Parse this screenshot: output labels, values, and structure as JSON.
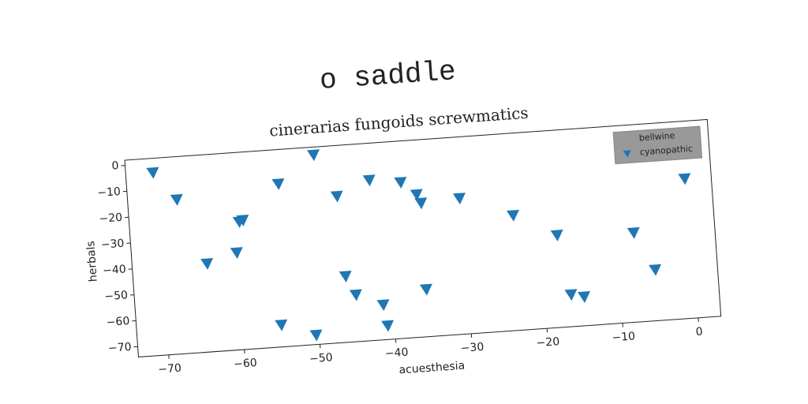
{
  "chart_data": {
    "type": "scatter",
    "suptitle": "o saddle",
    "title": "cinerarias fungoids screwmatics",
    "xlabel": "acuesthesia",
    "ylabel": "herbals",
    "legend_title": "bellwine",
    "legend": "upper right",
    "marker": "v",
    "xlim": [
      -74,
      3
    ],
    "ylim": [
      -74,
      2
    ],
    "xticks": [
      {
        "value": -70,
        "label": "−70"
      },
      {
        "value": -60,
        "label": "−60"
      },
      {
        "value": -50,
        "label": "−50"
      },
      {
        "value": -40,
        "label": "−40"
      },
      {
        "value": -30,
        "label": "−30"
      },
      {
        "value": -20,
        "label": "−20"
      },
      {
        "value": -10,
        "label": "−10"
      },
      0
    ],
    "yticks": [
      0,
      {
        "value": -10,
        "label": "−10"
      },
      {
        "value": -20,
        "label": "−20"
      },
      {
        "value": -30,
        "label": "−30"
      },
      {
        "value": -40,
        "label": "−40"
      },
      {
        "value": -50,
        "label": "−50"
      },
      {
        "value": -60,
        "label": "−60"
      },
      {
        "value": -70,
        "label": "−70"
      }
    ],
    "series": [
      {
        "name": "cyanopathic",
        "color": "#1f77b4",
        "x": [
          -70.4,
          -67.5,
          -64.1,
          -60.1,
          -59.5,
          -59.0,
          -54.0,
          -54.9,
          -49.1,
          -50.4,
          -46.4,
          -46.0,
          -44.8,
          -42.0,
          -41.3,
          -40.9,
          -37.9,
          -35.9,
          -35.4,
          -35.5,
          -30.3,
          -23.4,
          -17.8,
          -16.5,
          -14.8,
          -7.7,
          -5.2,
          -0.5
        ],
        "values": [
          -3.5,
          -14.5,
          -39.9,
          -36.5,
          -24.7,
          -24.2,
          -11.2,
          -65.5,
          -1.0,
          -70.3,
          -17.5,
          -48.5,
          -55.9,
          -12.2,
          -60.5,
          -68.6,
          -13.9,
          -19.0,
          -22.4,
          -55.7,
          -21.6,
          -29.6,
          -38.4,
          -61.6,
          -62.8,
          -39.5,
          -54.3,
          -20.1
        ]
      }
    ]
  }
}
